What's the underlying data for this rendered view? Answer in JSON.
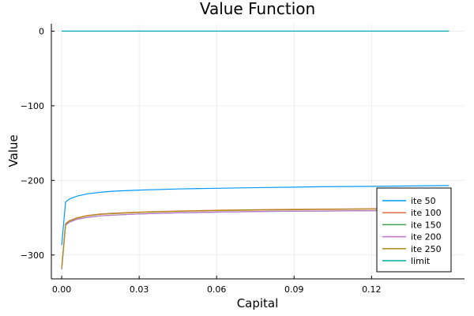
{
  "chart_data": {
    "type": "line",
    "title": "Value Function",
    "xlabel": "Capital",
    "ylabel": "Value",
    "xlim": [
      -0.004,
      0.156
    ],
    "ylim": [
      -332,
      10
    ],
    "x_ticks": [
      0.0,
      0.03,
      0.06,
      0.09,
      0.12
    ],
    "x_tick_labels": [
      "0.00",
      "0.03",
      "0.06",
      "0.09",
      "0.12"
    ],
    "y_ticks": [
      0,
      -100,
      -200,
      -300
    ],
    "y_tick_labels": [
      "0",
      "−100",
      "−200",
      "−300"
    ],
    "grid": true,
    "legend_position": "bottom-right",
    "series": [
      {
        "name": "ite 50",
        "color": "#009AFA",
        "x": [
          0.0,
          0.0015,
          0.003,
          0.006,
          0.01,
          0.015,
          0.02,
          0.03,
          0.045,
          0.06,
          0.08,
          0.1,
          0.12,
          0.15
        ],
        "values": [
          -287,
          -229,
          -225,
          -221,
          -218,
          -216,
          -214.5,
          -213,
          -211.5,
          -210.5,
          -209.5,
          -208.5,
          -208,
          -207
        ]
      },
      {
        "name": "ite 100",
        "color": "#E26F46",
        "x": [
          0.0,
          0.0015,
          0.003,
          0.006,
          0.01,
          0.015,
          0.02,
          0.03,
          0.045,
          0.06,
          0.08,
          0.1,
          0.12,
          0.15
        ],
        "values": [
          -318,
          -258,
          -254,
          -250,
          -247,
          -245,
          -244,
          -242.5,
          -241,
          -240,
          -239,
          -238.5,
          -238,
          -237
        ]
      },
      {
        "name": "ite 150",
        "color": "#3DA44D",
        "x": [
          0.0,
          0.0015,
          0.003,
          0.006,
          0.01,
          0.015,
          0.02,
          0.03,
          0.045,
          0.06,
          0.08,
          0.1,
          0.12,
          0.15
        ],
        "values": [
          -319,
          -260,
          -256,
          -252,
          -249.5,
          -247.5,
          -246.5,
          -245,
          -243.5,
          -242.5,
          -241.5,
          -241,
          -240.5,
          -240
        ]
      },
      {
        "name": "ite 200",
        "color": "#C271D2",
        "x": [
          0.0,
          0.0015,
          0.003,
          0.006,
          0.01,
          0.015,
          0.02,
          0.03,
          0.045,
          0.06,
          0.08,
          0.1,
          0.12,
          0.15
        ],
        "values": [
          -319,
          -260,
          -256,
          -252,
          -249.5,
          -247.5,
          -246.5,
          -245,
          -243.5,
          -242.5,
          -241.5,
          -241,
          -240.5,
          -240
        ]
      },
      {
        "name": "ite 250",
        "color": "#AC8D18",
        "x": [
          0.0,
          0.0015,
          0.003,
          0.006,
          0.01,
          0.015,
          0.02,
          0.03,
          0.045,
          0.06,
          0.08,
          0.1,
          0.12,
          0.15
        ],
        "values": [
          -318,
          -258.5,
          -254.5,
          -250.5,
          -247.5,
          -245.5,
          -244.5,
          -243,
          -241.5,
          -240.5,
          -239.5,
          -239,
          -238.5,
          -238
        ]
      },
      {
        "name": "limit",
        "color": "#00A9AD",
        "x": [
          0.0,
          0.15
        ],
        "values": [
          0,
          0
        ]
      }
    ]
  }
}
